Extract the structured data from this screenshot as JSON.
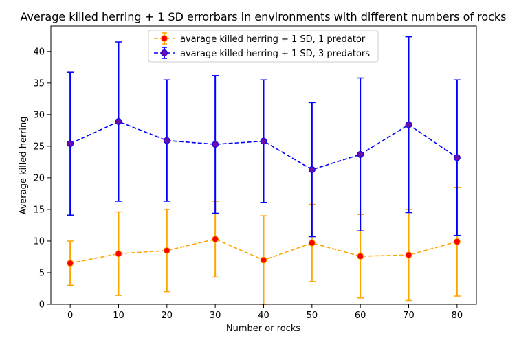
{
  "chart_data": {
    "type": "line",
    "title": "Average killed herring + 1 SD errorbars in environments with different numbers of rocks",
    "xlabel": "Number or rocks",
    "ylabel": "Average killed herring",
    "x": [
      0,
      10,
      20,
      30,
      40,
      50,
      60,
      70,
      80
    ],
    "xticks": [
      0,
      10,
      20,
      30,
      40,
      50,
      60,
      70,
      80
    ],
    "yticks": [
      0,
      5,
      10,
      15,
      20,
      25,
      30,
      35,
      40
    ],
    "xlim": [
      -4,
      84
    ],
    "ylim": [
      0,
      44
    ],
    "grid": false,
    "legend_position": "top-center",
    "series": [
      {
        "name": "avarage killed herring + 1 SD, 1 predator",
        "line_color": "#ffa500",
        "marker_face": "#ff0000",
        "values": [
          6.5,
          8.0,
          8.5,
          10.3,
          7.0,
          9.7,
          7.6,
          7.8,
          9.9
        ],
        "sd": [
          3.5,
          6.6,
          6.5,
          6.0,
          7.0,
          6.1,
          6.6,
          7.2,
          8.6
        ]
      },
      {
        "name": "avarage killed herring + 1 SD, 3 predators",
        "line_color": "#0000ff",
        "marker_face": "#6a0dad",
        "values": [
          25.4,
          28.9,
          25.9,
          25.3,
          25.8,
          21.3,
          23.7,
          28.4,
          23.2
        ],
        "sd": [
          11.3,
          12.6,
          9.6,
          10.9,
          9.7,
          10.6,
          12.1,
          13.9,
          12.3
        ]
      }
    ]
  }
}
